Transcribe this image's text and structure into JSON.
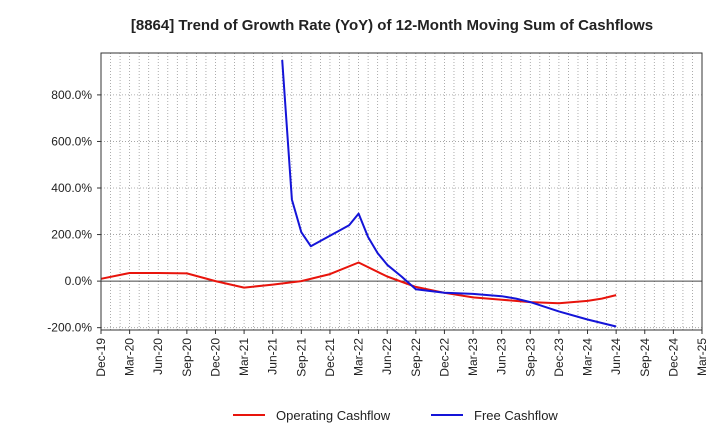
{
  "chart_data": {
    "type": "line",
    "title": "[8864]  Trend of Growth Rate (YoY) of 12-Month Moving Sum of Cashflows",
    "xlabel": "",
    "ylabel": "",
    "x_tick_labels": [
      "Dec-19",
      "Mar-20",
      "Jun-20",
      "Sep-20",
      "Dec-20",
      "Mar-21",
      "Jun-21",
      "Sep-21",
      "Dec-21",
      "Mar-22",
      "Jun-22",
      "Sep-22",
      "Dec-22",
      "Mar-23",
      "Jun-23",
      "Sep-23",
      "Dec-23",
      "Mar-24",
      "Jun-24",
      "Sep-24",
      "Dec-24",
      "Mar-25"
    ],
    "y_ticks": [
      -200,
      0,
      200,
      400,
      600,
      800
    ],
    "y_tick_labels": [
      "-200.0%",
      "0.0%",
      "200.0%",
      "400.0%",
      "600.0%",
      "800.0%"
    ],
    "ylim": [
      -210,
      980
    ],
    "grid": true,
    "legend_position": "bottom",
    "series": [
      {
        "name": "Operating Cashflow",
        "color": "#e8140c",
        "points": [
          [
            0,
            10
          ],
          [
            1,
            35
          ],
          [
            2,
            35
          ],
          [
            3,
            33
          ],
          [
            4,
            0
          ],
          [
            5,
            -28
          ],
          [
            6,
            -15
          ],
          [
            7,
            0
          ],
          [
            8,
            30
          ],
          [
            9,
            80
          ],
          [
            10,
            20
          ],
          [
            11,
            -25
          ],
          [
            12,
            -50
          ],
          [
            13,
            -70
          ],
          [
            14,
            -80
          ],
          [
            15,
            -90
          ],
          [
            16,
            -95
          ],
          [
            17,
            -85
          ],
          [
            17.5,
            -75
          ],
          [
            18,
            -60
          ]
        ]
      },
      {
        "name": "Free Cashflow",
        "color": "#1414d8",
        "points": [
          [
            6.33,
            950
          ],
          [
            6.67,
            350
          ],
          [
            7,
            210
          ],
          [
            7.33,
            150
          ],
          [
            8.67,
            240
          ],
          [
            9,
            290
          ],
          [
            9.33,
            190
          ],
          [
            9.67,
            120
          ],
          [
            10,
            70
          ],
          [
            10.5,
            20
          ],
          [
            11,
            -35
          ],
          [
            12,
            -50
          ],
          [
            13,
            -55
          ],
          [
            14,
            -65
          ],
          [
            14.5,
            -75
          ],
          [
            15,
            -90
          ],
          [
            16,
            -130
          ],
          [
            17,
            -165
          ],
          [
            18,
            -195
          ]
        ]
      }
    ]
  }
}
